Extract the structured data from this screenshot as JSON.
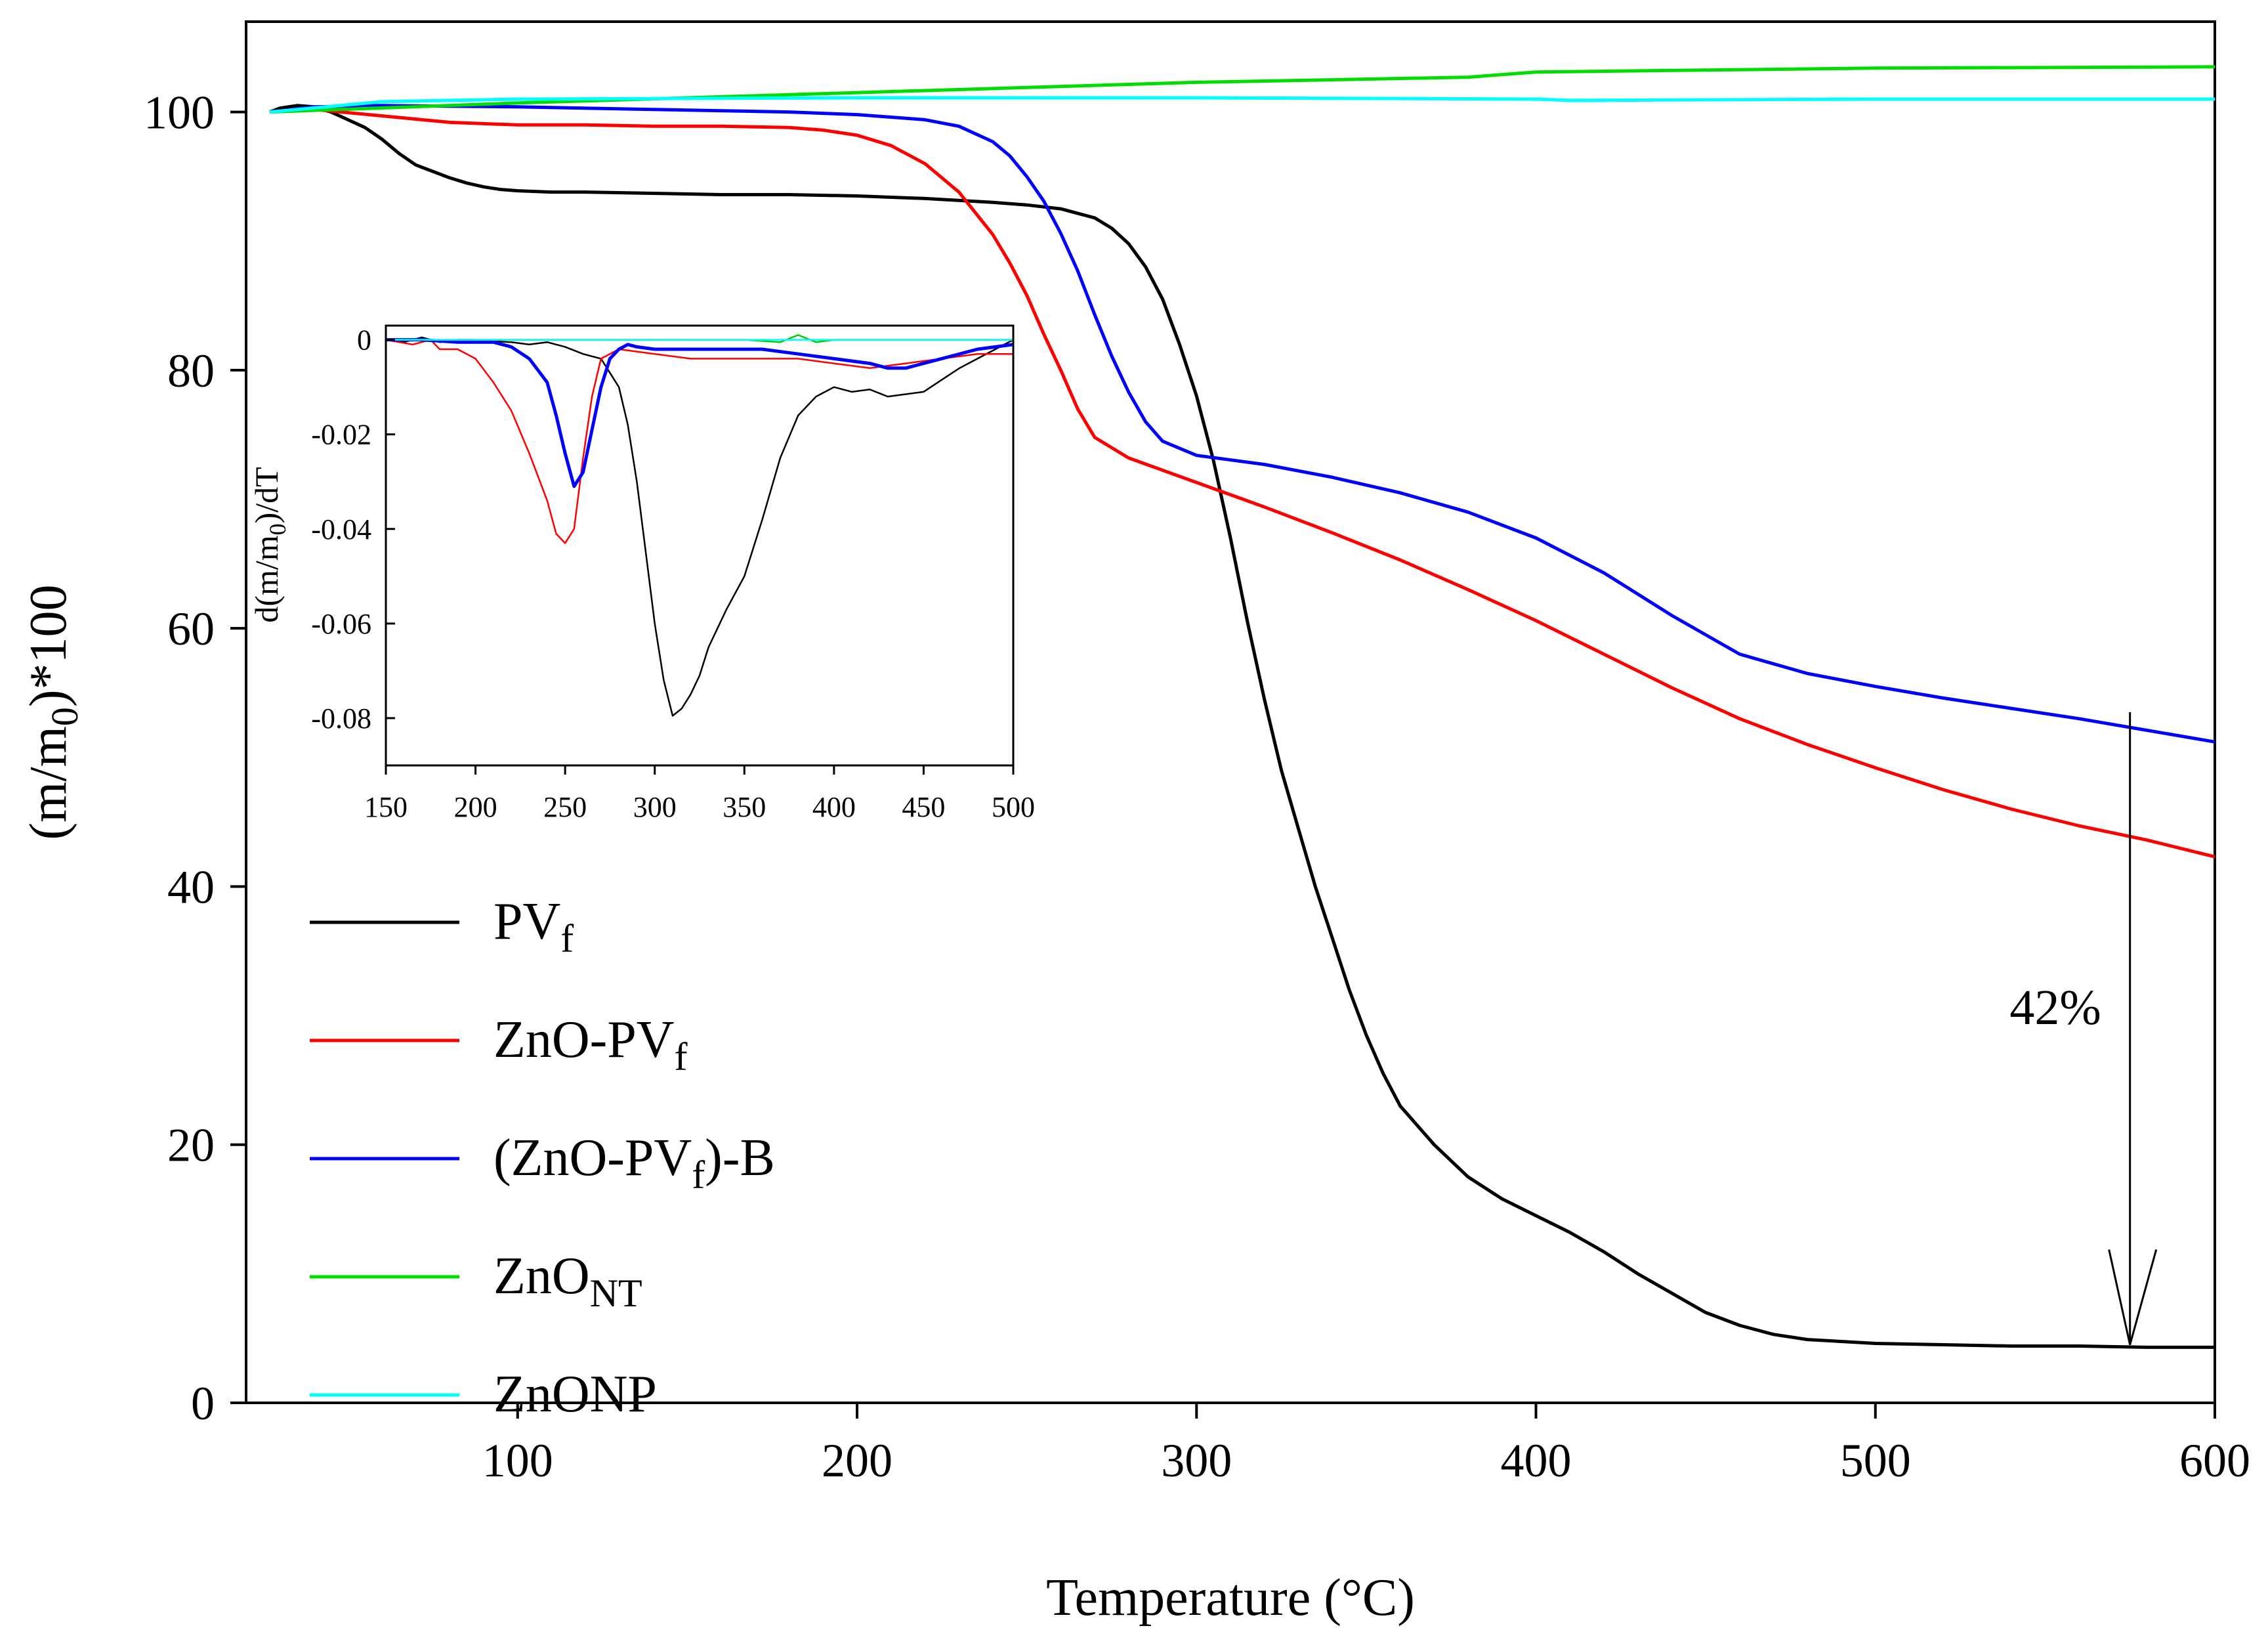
{
  "chart_data": [
    {
      "type": "line",
      "xlabel": "Temperature (°C)",
      "ylabel": "(m/m0)*100",
      "ylabel_main": "(m/m",
      "ylabel_sub": "0",
      "ylabel_tail": ")*100",
      "xlim": [
        20,
        600
      ],
      "ylim": [
        0,
        107
      ],
      "xticks": [
        100,
        200,
        300,
        400,
        500,
        600
      ],
      "yticks": [
        0,
        20,
        40,
        60,
        80,
        100
      ],
      "legend_position": "lower-left",
      "series": [
        {
          "name": "PVf",
          "label_main": "PV",
          "label_sub": "f",
          "label_tail": "",
          "color": "#000000",
          "x": [
            27,
            30,
            35,
            40,
            45,
            50,
            55,
            60,
            65,
            70,
            75,
            80,
            85,
            90,
            95,
            100,
            110,
            120,
            140,
            160,
            180,
            200,
            220,
            240,
            250,
            260,
            270,
            275,
            280,
            285,
            290,
            295,
            300,
            305,
            310,
            315,
            320,
            325,
            330,
            335,
            340,
            345,
            350,
            355,
            360,
            370,
            380,
            390,
            400,
            410,
            420,
            430,
            440,
            450,
            460,
            470,
            480,
            500,
            520,
            540,
            560,
            580,
            600
          ],
          "y": [
            100,
            100.3,
            100.5,
            100.4,
            100,
            99.4,
            98.8,
            97.9,
            96.8,
            95.9,
            95.4,
            94.9,
            94.5,
            94.2,
            94.0,
            93.9,
            93.8,
            93.8,
            93.7,
            93.6,
            93.6,
            93.5,
            93.3,
            93.0,
            92.8,
            92.5,
            91.8,
            91.0,
            89.8,
            88.0,
            85.5,
            82.0,
            78.0,
            73.0,
            67.0,
            60.5,
            54.5,
            49.0,
            44.5,
            40.0,
            36.0,
            32.0,
            28.5,
            25.5,
            23.0,
            20.0,
            17.5,
            15.8,
            14.5,
            13.2,
            11.7,
            10.0,
            8.5,
            7.0,
            6.0,
            5.3,
            4.9,
            4.6,
            4.5,
            4.4,
            4.4,
            4.3,
            4.3
          ]
        },
        {
          "name": "ZnO-PVf",
          "label_main": "ZnO-PV",
          "label_sub": "f",
          "label_tail": "",
          "color": "#ff0000",
          "x": [
            27,
            40,
            60,
            80,
            100,
            120,
            140,
            160,
            180,
            190,
            200,
            210,
            220,
            230,
            240,
            245,
            250,
            255,
            260,
            265,
            270,
            280,
            300,
            320,
            340,
            360,
            380,
            400,
            420,
            440,
            460,
            480,
            500,
            520,
            540,
            560,
            580,
            600
          ],
          "y": [
            100,
            100.2,
            99.7,
            99.2,
            99.0,
            99.0,
            98.9,
            98.9,
            98.8,
            98.6,
            98.2,
            97.4,
            96.0,
            93.8,
            90.5,
            88.3,
            85.8,
            82.8,
            80.0,
            77.0,
            74.8,
            73.2,
            71.3,
            69.4,
            67.4,
            65.3,
            63.0,
            60.6,
            58.0,
            55.4,
            53.0,
            51.0,
            49.2,
            47.5,
            46.0,
            44.7,
            43.6,
            42.3
          ]
        },
        {
          "name": "(ZnO-PVf)-B",
          "label_main": "(ZnO-PV",
          "label_sub": "f",
          "label_tail": ")-B",
          "color": "#0000ff",
          "x": [
            27,
            40,
            60,
            100,
            140,
            180,
            200,
            220,
            230,
            240,
            245,
            250,
            255,
            260,
            265,
            270,
            275,
            280,
            285,
            290,
            300,
            320,
            340,
            360,
            380,
            400,
            420,
            440,
            460,
            480,
            500,
            520,
            540,
            560,
            580,
            600
          ],
          "y": [
            100,
            100.4,
            100.5,
            100.4,
            100.2,
            100.0,
            99.8,
            99.4,
            98.9,
            97.7,
            96.6,
            95.0,
            93.1,
            90.6,
            87.7,
            84.3,
            81.1,
            78.3,
            76.0,
            74.5,
            73.4,
            72.7,
            71.7,
            70.5,
            69.0,
            67.0,
            64.3,
            61.0,
            58.0,
            56.5,
            55.5,
            54.6,
            53.8,
            53.0,
            52.1,
            51.2
          ]
        },
        {
          "name": "ZnONT",
          "label_main": "ZnO",
          "label_sub": "NT",
          "label_tail": "",
          "color": "#00dd00",
          "x": [
            27,
            100,
            200,
            300,
            380,
            400,
            500,
            600
          ],
          "y": [
            100,
            100.7,
            101.5,
            102.3,
            102.7,
            103.1,
            103.4,
            103.5
          ]
        },
        {
          "name": "ZnONP",
          "label_main": "ZnONP",
          "label_sub": "",
          "label_tail": "",
          "color": "#00ffff",
          "x": [
            27,
            60,
            100,
            200,
            300,
            400,
            410,
            500,
            600
          ],
          "y": [
            100,
            100.8,
            101.0,
            101.1,
            101.1,
            101.0,
            100.9,
            101.0,
            101.0
          ]
        }
      ],
      "annotations": [
        {
          "text": "42%",
          "arrow_x": 575,
          "arrow_from_y": 53.5,
          "arrow_to_y": 4.5
        }
      ]
    },
    {
      "type": "line",
      "xlabel": "",
      "ylabel": "d(m/m0)/dT",
      "ylabel_main": "d(m/m",
      "ylabel_sub": "0",
      "ylabel_tail": ")/dT",
      "xlim": [
        150,
        500
      ],
      "ylim": [
        -0.09,
        0.003
      ],
      "xticks": [
        150,
        200,
        250,
        300,
        350,
        400,
        450,
        500
      ],
      "yticks": [
        0,
        -0.02,
        -0.04,
        -0.06,
        -0.08
      ],
      "ytick_labels": [
        "0",
        "-0.02",
        "-0.04",
        "-0.06",
        "-0.08"
      ],
      "series": [
        {
          "name": "PVf",
          "color": "#000000",
          "width": "thin",
          "x": [
            150,
            160,
            170,
            180,
            190,
            200,
            210,
            220,
            230,
            240,
            250,
            260,
            270,
            280,
            285,
            290,
            295,
            300,
            305,
            310,
            315,
            320,
            325,
            330,
            340,
            350,
            360,
            370,
            380,
            390,
            400,
            410,
            420,
            430,
            440,
            450,
            460,
            470,
            480,
            490,
            500
          ],
          "y": [
            0,
            -0.0005,
            0.0005,
            -0.0005,
            0,
            0,
            -0.0003,
            -0.0005,
            -0.001,
            -0.0005,
            -0.0015,
            -0.003,
            -0.004,
            -0.01,
            -0.018,
            -0.03,
            -0.045,
            -0.06,
            -0.072,
            -0.0795,
            -0.078,
            -0.075,
            -0.071,
            -0.065,
            -0.057,
            -0.05,
            -0.038,
            -0.025,
            -0.016,
            -0.012,
            -0.01,
            -0.011,
            -0.0105,
            -0.012,
            -0.0115,
            -0.011,
            -0.0085,
            -0.006,
            -0.004,
            -0.002,
            0
          ]
        },
        {
          "name": "ZnO-PVf",
          "color": "#ff0000",
          "width": "thin",
          "x": [
            150,
            165,
            175,
            180,
            190,
            200,
            210,
            220,
            230,
            240,
            245,
            250,
            255,
            260,
            265,
            270,
            280,
            300,
            320,
            340,
            360,
            380,
            400,
            420,
            440,
            460,
            480,
            500
          ],
          "y": [
            0,
            -0.001,
            0,
            -0.002,
            -0.002,
            -0.004,
            -0.009,
            -0.015,
            -0.024,
            -0.034,
            -0.041,
            -0.043,
            -0.04,
            -0.025,
            -0.012,
            -0.004,
            -0.002,
            -0.003,
            -0.004,
            -0.004,
            -0.004,
            -0.004,
            -0.005,
            -0.006,
            -0.005,
            -0.004,
            -0.003,
            -0.003
          ]
        },
        {
          "name": "(ZnO-PVf)-B",
          "color": "#0000ff",
          "width": "thick",
          "x": [
            150,
            170,
            190,
            210,
            220,
            230,
            240,
            245,
            250,
            255,
            260,
            265,
            270,
            275,
            280,
            285,
            290,
            300,
            320,
            340,
            360,
            380,
            400,
            420,
            430,
            440,
            450,
            460,
            480,
            500
          ],
          "y": [
            0,
            0,
            -0.0005,
            -0.0005,
            -0.0015,
            -0.004,
            -0.009,
            -0.016,
            -0.024,
            -0.031,
            -0.028,
            -0.019,
            -0.01,
            -0.004,
            -0.002,
            -0.001,
            -0.0015,
            -0.002,
            -0.002,
            -0.002,
            -0.002,
            -0.003,
            -0.004,
            -0.005,
            -0.006,
            -0.006,
            -0.005,
            -0.004,
            -0.002,
            -0.001
          ]
        },
        {
          "name": "ZnONT",
          "color": "#00cc00",
          "width": "thin",
          "x": [
            150,
            200,
            250,
            300,
            350,
            370,
            380,
            390,
            400,
            420,
            450,
            500
          ],
          "y": [
            0,
            0,
            0,
            0,
            0,
            -0.0005,
            0.001,
            -0.0005,
            0,
            0,
            0,
            0
          ]
        },
        {
          "name": "ZnONP",
          "color": "#00ffff",
          "width": "thin",
          "x": [
            150,
            250,
            350,
            450,
            500
          ],
          "y": [
            0,
            0,
            0,
            0,
            0
          ]
        }
      ]
    }
  ]
}
